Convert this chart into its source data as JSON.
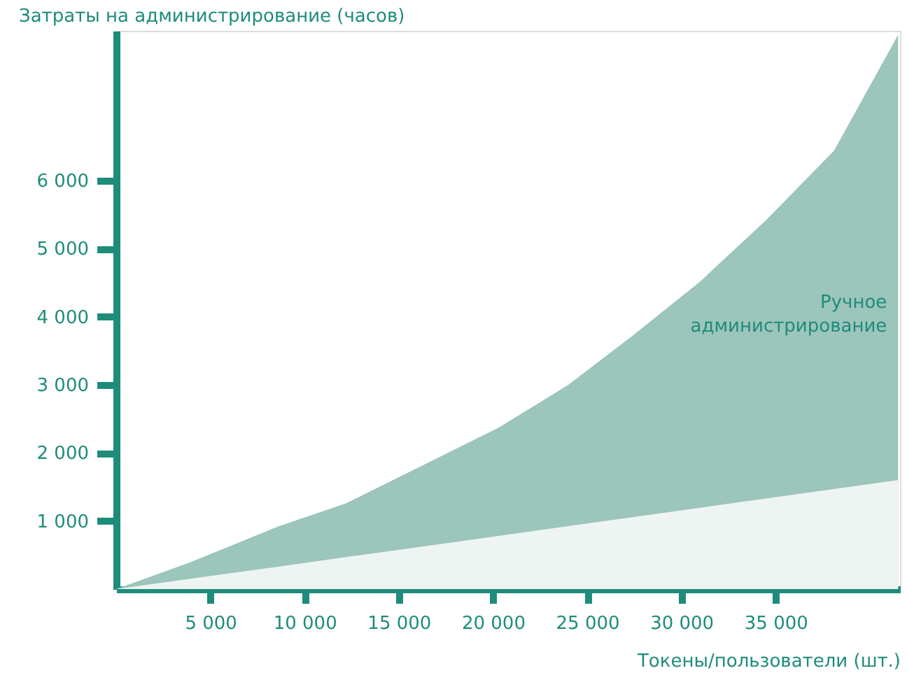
{
  "chart_data": {
    "type": "area",
    "ylabel": "Затраты на администрирование (часов)",
    "xlabel": "Токены/пользователи (шт.)",
    "x": [
      0,
      4000,
      8600,
      12200,
      16000,
      20300,
      24000,
      27400,
      31000,
      34500,
      38100,
      41500
    ],
    "series": [
      {
        "name": "Ручное администрирование",
        "color": "#9cc5bb",
        "values": [
          0,
          400,
          920,
          1260,
          1780,
          2370,
          3000,
          3720,
          4520,
          5420,
          6440,
          8140
        ]
      },
      {
        "color": "#eef4f2",
        "values": [
          0,
          155,
          330,
          470,
          615,
          780,
          925,
          1055,
          1195,
          1330,
          1470,
          1600
        ]
      }
    ],
    "xlim": [
      0,
      41600
    ],
    "ylim": [
      0,
      8200
    ],
    "xticks": [
      {
        "value": 5000,
        "label": "5 000"
      },
      {
        "value": 10000,
        "label": "10 000"
      },
      {
        "value": 15000,
        "label": "15 000"
      },
      {
        "value": 20000,
        "label": "20 000"
      },
      {
        "value": 25000,
        "label": "25 000"
      },
      {
        "value": 30000,
        "label": "30 000"
      },
      {
        "value": 35000,
        "label": "35 000"
      }
    ],
    "yticks": [
      {
        "value": 1000,
        "label": "1 000"
      },
      {
        "value": 2000,
        "label": "2 000"
      },
      {
        "value": 3000,
        "label": "3 000"
      },
      {
        "value": 4000,
        "label": "4 000"
      },
      {
        "value": 5000,
        "label": "5 000"
      },
      {
        "value": 6000,
        "label": "6 000"
      }
    ],
    "grid": false
  }
}
